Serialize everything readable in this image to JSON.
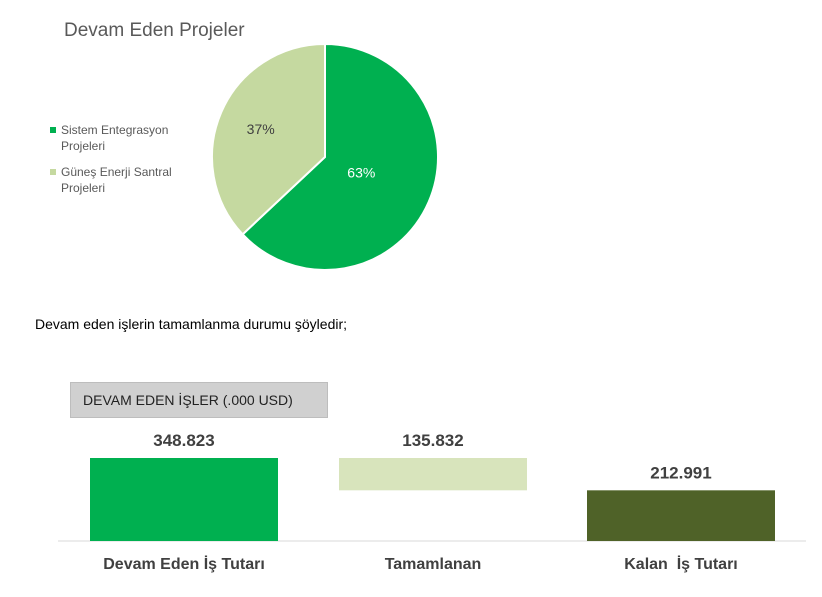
{
  "chart_data": [
    {
      "type": "pie",
      "title": "Devam Eden Projeler",
      "labels": [
        "Sistem Entegrasyon Projeleri",
        "Güneş Enerji Santral Projeleri"
      ],
      "values": [
        63,
        37
      ],
      "value_labels": [
        "63%",
        "37%"
      ],
      "colors": [
        "#00b050",
        "#c5d9a0"
      ],
      "legend": "left"
    },
    {
      "type": "bar",
      "subtype": "waterfall",
      "title": "DEVAM EDEN İŞLER (.000 USD)",
      "categories": [
        "Devam Eden İş Tutarı",
        "Tamamlanan",
        "Kalan  İş Tutarı"
      ],
      "values": [
        348.823,
        135.832,
        212.991
      ],
      "value_labels": [
        "348.823",
        "135.832",
        "212.991"
      ],
      "colors": [
        "#00b050",
        "#d8e4bc",
        "#4f6228"
      ]
    }
  ],
  "text": {
    "sentence": "Devam eden işlerin tamamlanma durumu şöyledir;"
  }
}
